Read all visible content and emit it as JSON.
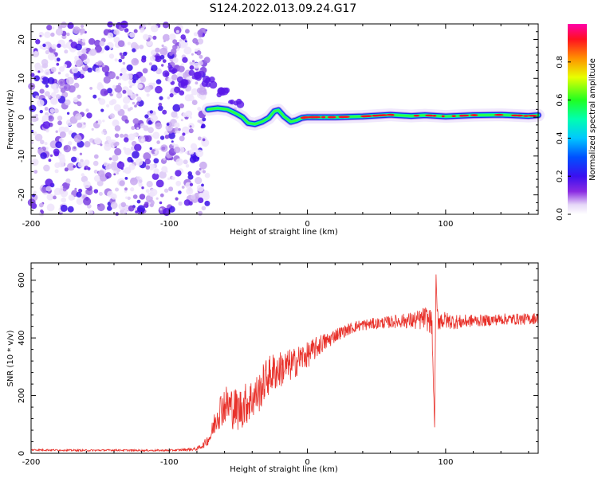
{
  "title": "S124.2022.013.09.24.G17",
  "chart_data": [
    {
      "type": "heatmap",
      "xlabel": "Height of straight line (km)",
      "ylabel": "Frequency (Hz)",
      "xlim": [
        -200,
        167
      ],
      "ylim": [
        -25,
        24
      ],
      "xticks": [
        "-200",
        "-100",
        "0",
        "100"
      ],
      "yticks": [
        "-20",
        "-10",
        "0",
        "10",
        "20"
      ],
      "colorbar": {
        "label": "Normalized spectral amplitude",
        "range": [
          0,
          1
        ],
        "ticks": [
          "0.0",
          "0.2",
          "0.4",
          "0.6",
          "0.8"
        ]
      },
      "noise_region_x": [
        -200,
        -72
      ],
      "ridge": [
        {
          "x": -72,
          "y": 2.0
        },
        {
          "x": -65,
          "y": 2.3
        },
        {
          "x": -58,
          "y": 2.0
        },
        {
          "x": -52,
          "y": 1.0
        },
        {
          "x": -47,
          "y": 0.0
        },
        {
          "x": -43,
          "y": -1.5
        },
        {
          "x": -38,
          "y": -1.8
        },
        {
          "x": -33,
          "y": -1.2
        },
        {
          "x": -28,
          "y": -0.2
        },
        {
          "x": -24,
          "y": 1.5
        },
        {
          "x": -21,
          "y": 1.8
        },
        {
          "x": -17,
          "y": 0.2
        },
        {
          "x": -12,
          "y": -1.2
        },
        {
          "x": -8,
          "y": -0.8
        },
        {
          "x": -4,
          "y": -0.2
        },
        {
          "x": 0,
          "y": 0.0
        },
        {
          "x": 20,
          "y": 0.0
        },
        {
          "x": 40,
          "y": 0.2
        },
        {
          "x": 60,
          "y": 0.6
        },
        {
          "x": 75,
          "y": 0.3
        },
        {
          "x": 85,
          "y": 0.5
        },
        {
          "x": 100,
          "y": 0.2
        },
        {
          "x": 120,
          "y": 0.5
        },
        {
          "x": 140,
          "y": 0.6
        },
        {
          "x": 160,
          "y": 0.3
        },
        {
          "x": 167,
          "y": 0.5
        }
      ],
      "faint_trace": [
        {
          "x": -100,
          "y": 12
        },
        {
          "x": -90,
          "y": 9
        },
        {
          "x": -80,
          "y": 11
        },
        {
          "x": -72,
          "y": 9
        },
        {
          "x": -62,
          "y": 6
        },
        {
          "x": -52,
          "y": 3
        }
      ]
    },
    {
      "type": "line",
      "xlabel": "Height of straight line (km)",
      "ylabel": "SNR (10 * v/v)",
      "xlim": [
        -200,
        167
      ],
      "ylim": [
        0,
        660
      ],
      "xticks": [
        "-200",
        "-100",
        "0",
        "100"
      ],
      "yticks": [
        "0",
        "200",
        "400",
        "600"
      ],
      "color": "#e8312a",
      "series": [
        {
          "x": [
            -200,
            -180,
            -160,
            -140,
            -120,
            -100,
            -90,
            -80,
            -75,
            -70,
            -65,
            -60,
            -55,
            -50,
            -45,
            -40,
            -35,
            -30,
            -25,
            -20,
            -15,
            -10,
            -5,
            0,
            5,
            10,
            15,
            20,
            25,
            30,
            35,
            40,
            50,
            60,
            70,
            80,
            85,
            90,
            92,
            93,
            94,
            95,
            100,
            110,
            120,
            130,
            140,
            150,
            160,
            167
          ],
          "y": [
            12,
            11,
            10,
            11,
            10,
            10,
            12,
            15,
            30,
            60,
            140,
            170,
            160,
            150,
            170,
            190,
            210,
            260,
            280,
            290,
            300,
            310,
            330,
            340,
            360,
            380,
            390,
            410,
            420,
            430,
            440,
            445,
            450,
            455,
            460,
            460,
            470,
            455,
            90,
            620,
            470,
            465,
            460,
            455,
            460,
            460,
            465,
            465,
            465,
            470
          ],
          "noise_amp": [
            3,
            3,
            3,
            3,
            3,
            3,
            4,
            6,
            12,
            25,
            60,
            70,
            75,
            75,
            75,
            75,
            70,
            70,
            70,
            65,
            60,
            55,
            50,
            45,
            40,
            35,
            30,
            25,
            22,
            20,
            20,
            20,
            20,
            22,
            25,
            35,
            40,
            45,
            0,
            0,
            45,
            40,
            30,
            25,
            22,
            20,
            20,
            20,
            20,
            20
          ]
        }
      ]
    }
  ]
}
